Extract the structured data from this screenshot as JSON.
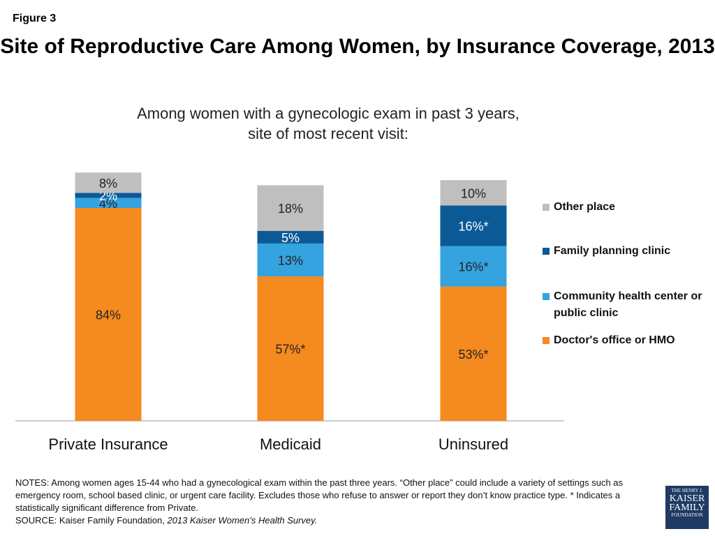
{
  "figure_label": "Figure 3",
  "chart_data": {
    "type": "stacked-bar",
    "title": "Site of Reproductive Care Among Women, by Insurance Coverage, 2013",
    "subtitle": "Among women with a gynecologic exam in past 3 years, site of most recent visit:",
    "categories": [
      "Private Insurance",
      "Medicaid",
      "Uninsured"
    ],
    "series": [
      {
        "name": "Doctor's office or HMO",
        "color": "#f58a1f",
        "values": [
          84,
          57,
          53
        ],
        "value_labels": [
          "84%",
          "57%*",
          "53%*"
        ]
      },
      {
        "name": "Community health center or public clinic",
        "color": "#35a3e0",
        "values": [
          4,
          13,
          16
        ],
        "value_labels": [
          "4%",
          "13%",
          "16%*"
        ]
      },
      {
        "name": "Family planning clinic",
        "color": "#0b5a96",
        "values": [
          2,
          5,
          16
        ],
        "value_labels": [
          "2%",
          "5%",
          "16%*"
        ]
      },
      {
        "name": "Other place",
        "color": "#bfbfbf",
        "values": [
          8,
          18,
          10
        ],
        "value_labels": [
          "8%",
          "18%",
          "10%"
        ]
      }
    ]
  },
  "notes": "NOTES: Among women ages 15-44 who had a gynecological  exam within the past three years. “Other place” could include a variety of settings such as  emergency room, school based clinic, or urgent care facility.  Excludes those who refuse to answer or report they don’t know practice type.  * Indicates a statistically significant difference from Private.",
  "source": {
    "text": "SOURCE: Kaiser Family Foundation, ",
    "italic": "2013 Kaiser Women’s Health Survey."
  },
  "logo": [
    "THE HENRY J.",
    "KAISER",
    "FAMILY",
    "FOUNDATION"
  ]
}
